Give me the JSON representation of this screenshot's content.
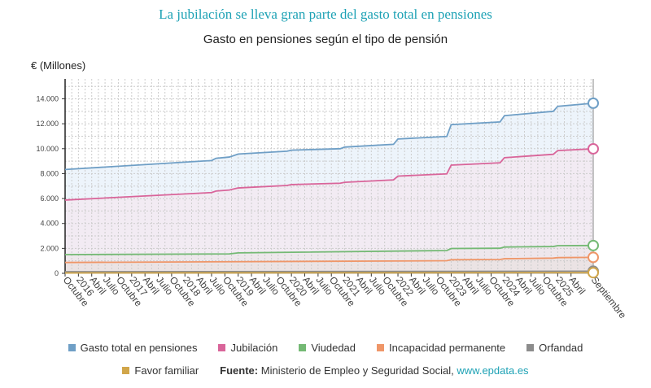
{
  "header": {
    "title": "La jubilación se lleva gran parte del gasto total en pensiones",
    "subtitle": "Gasto en pensiones según el tipo de pensión"
  },
  "source": {
    "label": "Fuente:",
    "text": "Ministerio de Empleo y Seguridad Social,",
    "link": "www.epdata.es"
  },
  "chart_data": {
    "type": "area",
    "title": "Gasto en pensiones según el tipo de pensión",
    "ylabel": "€ (Millones)",
    "xlabel": "",
    "ylim": [
      0,
      15600
    ],
    "yticks": [
      0,
      2000,
      4000,
      6000,
      8000,
      10000,
      12000,
      14000
    ],
    "ytick_labels": [
      "0",
      "2.000",
      "4.000",
      "6.000",
      "8.000",
      "10.000",
      "12.000",
      "14.000"
    ],
    "xlim": [
      "2015-10",
      "2025-09"
    ],
    "xticks": [
      {
        "date": "2015-10",
        "label": "Octubre"
      },
      {
        "date": "2016-01",
        "label": "2016"
      },
      {
        "date": "2016-04",
        "label": "Abril"
      },
      {
        "date": "2016-07",
        "label": "Julio"
      },
      {
        "date": "2016-10",
        "label": "Octubre"
      },
      {
        "date": "2017-01",
        "label": "2017"
      },
      {
        "date": "2017-04",
        "label": "Abril"
      },
      {
        "date": "2017-07",
        "label": "Julio"
      },
      {
        "date": "2017-10",
        "label": "Octubre"
      },
      {
        "date": "2018-01",
        "label": "2018"
      },
      {
        "date": "2018-04",
        "label": "Abril"
      },
      {
        "date": "2018-07",
        "label": "Julio"
      },
      {
        "date": "2018-10",
        "label": "Octubre"
      },
      {
        "date": "2019-01",
        "label": "2019"
      },
      {
        "date": "2019-04",
        "label": "Abril"
      },
      {
        "date": "2019-07",
        "label": "Julio"
      },
      {
        "date": "2019-10",
        "label": "Octubre"
      },
      {
        "date": "2020-01",
        "label": "2020"
      },
      {
        "date": "2020-04",
        "label": "Abril"
      },
      {
        "date": "2020-07",
        "label": "Julio"
      },
      {
        "date": "2020-10",
        "label": "Octubre"
      },
      {
        "date": "2021-01",
        "label": "2021"
      },
      {
        "date": "2021-04",
        "label": "Abril"
      },
      {
        "date": "2021-07",
        "label": "Julio"
      },
      {
        "date": "2021-10",
        "label": "Octubre"
      },
      {
        "date": "2022-01",
        "label": "2022"
      },
      {
        "date": "2022-04",
        "label": "Abril"
      },
      {
        "date": "2022-07",
        "label": "Julio"
      },
      {
        "date": "2022-10",
        "label": "Octubre"
      },
      {
        "date": "2023-01",
        "label": "2023"
      },
      {
        "date": "2023-04",
        "label": "Abril"
      },
      {
        "date": "2023-07",
        "label": "Julio"
      },
      {
        "date": "2023-10",
        "label": "Octubre"
      },
      {
        "date": "2024-01",
        "label": "2024"
      },
      {
        "date": "2024-04",
        "label": "Abril"
      },
      {
        "date": "2024-07",
        "label": "Julio"
      },
      {
        "date": "2024-10",
        "label": "Octubre"
      },
      {
        "date": "2025-01",
        "label": "2025"
      },
      {
        "date": "2025-04",
        "label": "Abril"
      },
      {
        "date": "2025-09",
        "label": "Septiembre"
      }
    ],
    "grid": true,
    "legend_position": "bottom",
    "series": [
      {
        "name": "Gasto total en pensiones",
        "color": "#6f9fc6",
        "fill": "#e8f1fa",
        "points": [
          [
            "2015-10",
            8330
          ],
          [
            "2018-07",
            9050
          ],
          [
            "2018-08",
            9230
          ],
          [
            "2018-11",
            9330
          ],
          [
            "2019-01",
            9570
          ],
          [
            "2019-12",
            9800
          ],
          [
            "2020-01",
            9880
          ],
          [
            "2020-12",
            10000
          ],
          [
            "2021-01",
            10130
          ],
          [
            "2021-12",
            10350
          ],
          [
            "2022-01",
            10780
          ],
          [
            "2022-12",
            10980
          ],
          [
            "2023-01",
            11930
          ],
          [
            "2023-12",
            12150
          ],
          [
            "2024-01",
            12650
          ],
          [
            "2024-12",
            13000
          ],
          [
            "2025-01",
            13400
          ],
          [
            "2025-09",
            13650
          ]
        ]
      },
      {
        "name": "Jubilación",
        "color": "#d9659a",
        "fill": "#f3e8f1",
        "points": [
          [
            "2015-10",
            5880
          ],
          [
            "2018-07",
            6480
          ],
          [
            "2018-08",
            6600
          ],
          [
            "2018-11",
            6680
          ],
          [
            "2019-01",
            6850
          ],
          [
            "2019-12",
            7050
          ],
          [
            "2020-01",
            7120
          ],
          [
            "2020-12",
            7230
          ],
          [
            "2021-01",
            7300
          ],
          [
            "2021-12",
            7500
          ],
          [
            "2022-01",
            7800
          ],
          [
            "2022-12",
            7980
          ],
          [
            "2023-01",
            8680
          ],
          [
            "2023-12",
            8870
          ],
          [
            "2024-01",
            9280
          ],
          [
            "2024-12",
            9550
          ],
          [
            "2025-01",
            9850
          ],
          [
            "2025-09",
            9990
          ]
        ]
      },
      {
        "name": "Viudedad",
        "color": "#74b974",
        "fill": "#ece6ea",
        "points": [
          [
            "2015-10",
            1500
          ],
          [
            "2018-11",
            1560
          ],
          [
            "2019-01",
            1640
          ],
          [
            "2022-12",
            1830
          ],
          [
            "2023-01",
            1990
          ],
          [
            "2023-12",
            2010
          ],
          [
            "2024-01",
            2110
          ],
          [
            "2024-12",
            2150
          ],
          [
            "2025-01",
            2220
          ],
          [
            "2025-09",
            2230
          ]
        ]
      },
      {
        "name": "Incapacidad permanente",
        "color": "#ef9668",
        "fill": "#eae2e2",
        "points": [
          [
            "2015-10",
            870
          ],
          [
            "2018-12",
            930
          ],
          [
            "2022-12",
            1010
          ],
          [
            "2023-01",
            1090
          ],
          [
            "2023-12",
            1110
          ],
          [
            "2024-01",
            1170
          ],
          [
            "2024-12",
            1220
          ],
          [
            "2025-01",
            1260
          ],
          [
            "2025-09",
            1280
          ]
        ]
      },
      {
        "name": "Orfandad",
        "color": "#8c8c8c",
        "fill": "#dcd6d2",
        "points": [
          [
            "2015-10",
            130
          ],
          [
            "2025-09",
            170
          ]
        ]
      },
      {
        "name": "Favor familiar",
        "color": "#d1a64a",
        "fill": "#e6dcc8",
        "points": [
          [
            "2015-10",
            30
          ],
          [
            "2025-09",
            50
          ]
        ]
      }
    ]
  }
}
